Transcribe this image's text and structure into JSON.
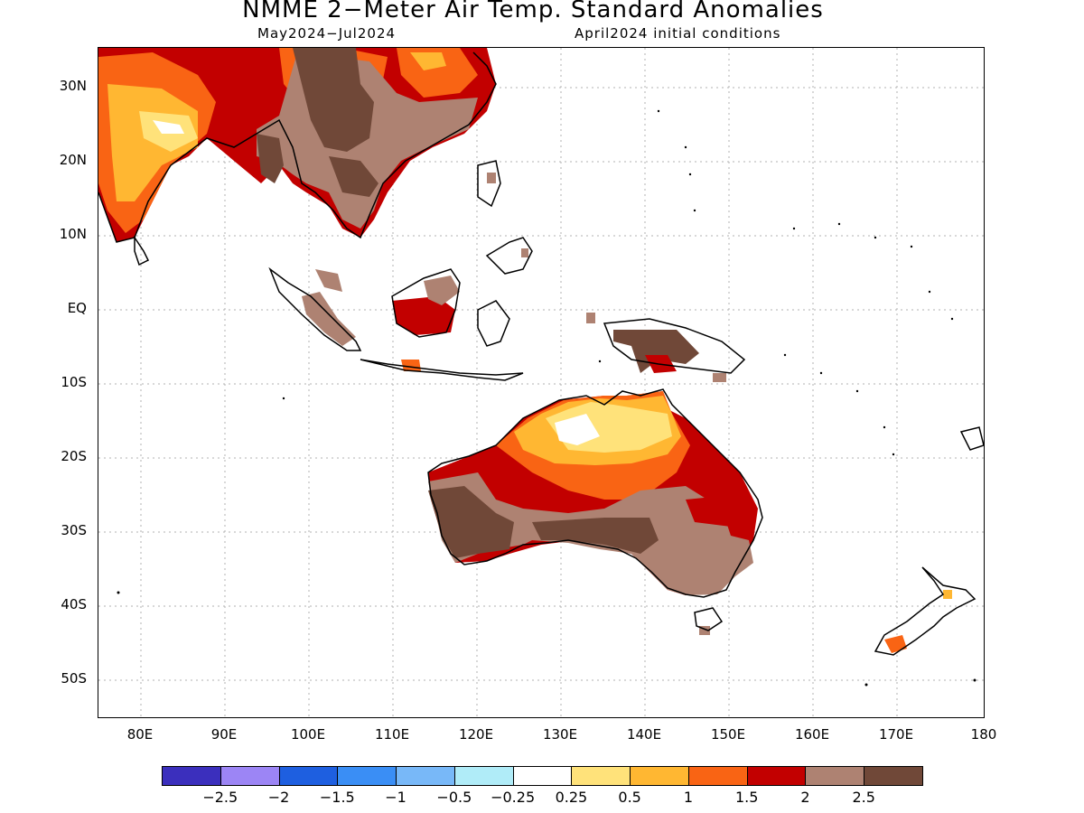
{
  "title": "NMME 2−Meter Air Temp. Standard Anomalies",
  "valid_period": "May2024−Jul2024",
  "initial_conditions": "April2024 initial conditions",
  "lat_labels": [
    "30N",
    "20N",
    "10N",
    "EQ",
    "10S",
    "20S",
    "30S",
    "40S",
    "50S"
  ],
  "lon_labels": [
    "80E",
    "90E",
    "100E",
    "110E",
    "120E",
    "130E",
    "140E",
    "150E",
    "160E",
    "170E",
    "180"
  ],
  "colorbar": {
    "colors": [
      "#3b2fbd",
      "#9c85f5",
      "#1e5fe0",
      "#3a8ef5",
      "#78b8f8",
      "#b0ecf8",
      "#ffffff",
      "#ffe27a",
      "#ffb732",
      "#f96414",
      "#c20000",
      "#ae8272",
      "#704838"
    ],
    "labels": [
      "−2.5",
      "−2",
      "−1.5",
      "−1",
      "−0.5",
      "−0.25",
      "0.25",
      "0.5",
      "1",
      "1.5",
      "2",
      "2.5"
    ]
  }
}
